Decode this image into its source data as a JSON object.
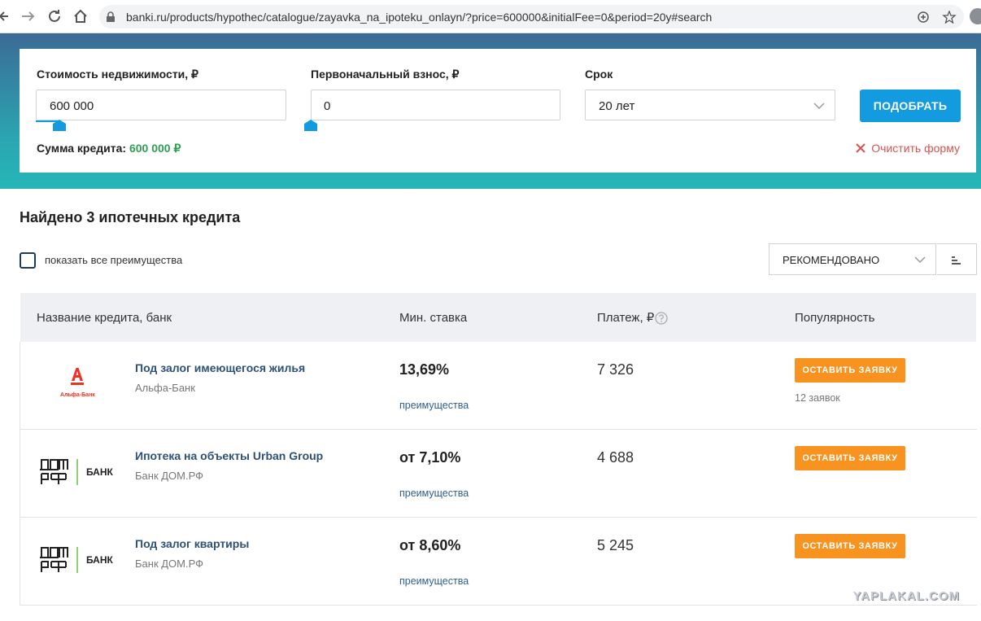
{
  "browser": {
    "url": "banki.ru/products/hypothec/catalogue/zayavka_na_ipoteku_onlayn/?price=600000&initialFee=0&period=20y#search"
  },
  "form": {
    "fields": [
      {
        "label": "Стоимость недвижимости, ₽",
        "value": "600 000"
      },
      {
        "label": "Первоначальный взнос, ₽",
        "value": "0"
      },
      {
        "label": "Срок",
        "value": "20 лет"
      }
    ],
    "submit": "ПОДОБРАТЬ",
    "loan_sum_label": "Сумма кредита:",
    "loan_sum_value": "600 000 ₽",
    "clear": "Очистить форму"
  },
  "results": {
    "title": "Найдено 3 ипотечных кредита",
    "show_all": "показать все преимущества",
    "sort": "РЕКОМЕНДОВАНО"
  },
  "table": {
    "columns": [
      "Название кредита, банк",
      "Мин. ставка",
      "Платеж, ₽",
      "Популярность"
    ],
    "rows": [
      {
        "logo": "alfa",
        "logo_text": "Альфа-Банк",
        "name": "Под залог имеющегося жилья",
        "bank": "Альфа-Банк",
        "rate": "13,69%",
        "advantages": "преимущества",
        "payment": "7 326",
        "button": "ОСТАВИТЬ ЗАЯВКУ",
        "requests": "12 заявок"
      },
      {
        "logo": "domrf",
        "logo_text": "БАНК",
        "name": "Ипотека на объекты Urban Group",
        "bank": "Банк ДОМ.РФ",
        "rate": "от 7,10%",
        "advantages": "преимущества",
        "payment": "4 688",
        "button": "ОСТАВИТЬ ЗАЯВКУ"
      },
      {
        "logo": "domrf",
        "logo_text": "БАНК",
        "name": "Под залог квартиры",
        "bank": "Банк ДОМ.РФ",
        "rate": "от 8,60%",
        "advantages": "преимущества",
        "payment": "5 245",
        "button": "ОСТАВИТЬ ЗАЯВКУ"
      }
    ]
  },
  "watermark": "YAPLAKAL.COM"
}
